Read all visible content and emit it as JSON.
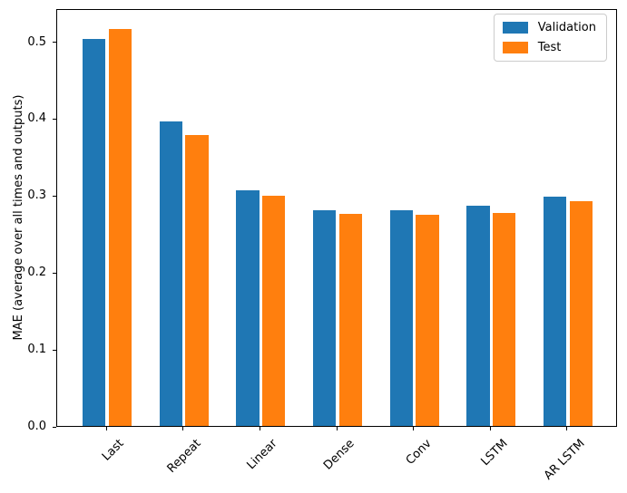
{
  "figure": {
    "background": "#ffffff",
    "spine_color": "#000000"
  },
  "chart_data": {
    "type": "bar",
    "title": "",
    "xlabel": "",
    "ylabel": "MAE (average over all times and outputs)",
    "categories": [
      "Last",
      "Repeat",
      "Linear",
      "Dense",
      "Conv",
      "LSTM",
      "AR LSTM"
    ],
    "series": [
      {
        "name": "Validation",
        "color": "#1f77b4",
        "values": [
          0.503,
          0.396,
          0.306,
          0.28,
          0.28,
          0.286,
          0.298
        ]
      },
      {
        "name": "Test",
        "color": "#ff7f0e",
        "values": [
          0.516,
          0.378,
          0.299,
          0.276,
          0.274,
          0.277,
          0.292
        ]
      }
    ],
    "ylim": [
      0,
      0.543
    ],
    "yticks": [
      {
        "value": 0.0,
        "label": "0.0"
      },
      {
        "value": 0.1,
        "label": "0.1"
      },
      {
        "value": 0.2,
        "label": "0.2"
      },
      {
        "value": 0.3,
        "label": "0.3"
      },
      {
        "value": 0.4,
        "label": "0.4"
      },
      {
        "value": 0.5,
        "label": "0.5"
      }
    ],
    "xtick_rotation": 45,
    "grid": false,
    "legend": {
      "position": "upper right"
    },
    "bar_width": 0.3,
    "bar_offsets": [
      -0.17,
      0.17
    ],
    "x_margin": 0.65
  }
}
